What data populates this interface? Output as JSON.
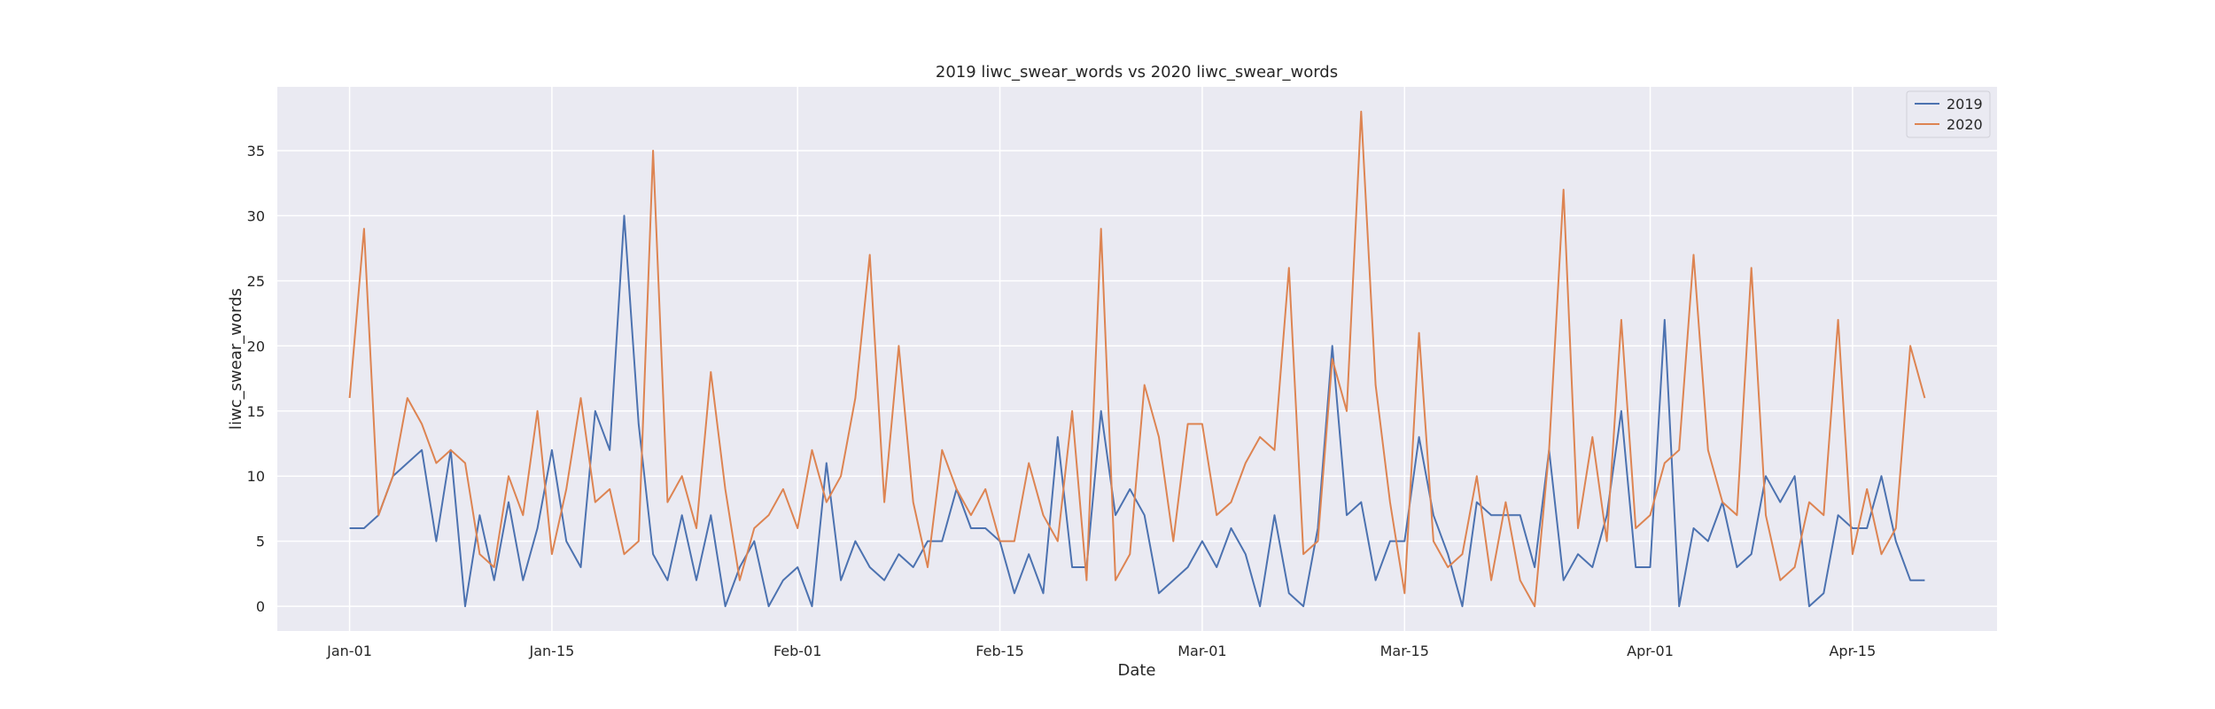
{
  "chart_data": {
    "type": "line",
    "title": "2019 liwc_swear_words vs 2020 liwc_swear_words",
    "xlabel": "Date",
    "ylabel": "liwc_swear_words",
    "x_start": "Jan-01",
    "x_ticks": [
      {
        "label": "Jan-01",
        "day": 0
      },
      {
        "label": "Jan-15",
        "day": 14
      },
      {
        "label": "Feb-01",
        "day": 31
      },
      {
        "label": "Feb-15",
        "day": 45
      },
      {
        "label": "Mar-01",
        "day": 59
      },
      {
        "label": "Mar-15",
        "day": 73
      },
      {
        "label": "Apr-01",
        "day": 90
      },
      {
        "label": "Apr-15",
        "day": 104
      }
    ],
    "xlim": [
      -5,
      114
    ],
    "ylim": [
      -1.9,
      39.9
    ],
    "y_ticks": [
      0,
      5,
      10,
      15,
      20,
      25,
      30,
      35
    ],
    "grid": true,
    "legend_position": "top-right",
    "series": [
      {
        "name": "2019",
        "color": "#4c72b0",
        "values": [
          6,
          6,
          7,
          10,
          11,
          12,
          5,
          12,
          0,
          7,
          2,
          8,
          2,
          6,
          12,
          5,
          3,
          15,
          12,
          30,
          14,
          4,
          2,
          7,
          2,
          7,
          0,
          3,
          5,
          0,
          2,
          3,
          0,
          11,
          2,
          5,
          3,
          2,
          4,
          3,
          5,
          5,
          9,
          6,
          6,
          5,
          1,
          4,
          1,
          13,
          3,
          3,
          15,
          7,
          9,
          7,
          1,
          2,
          3,
          5,
          3,
          6,
          4,
          0,
          7,
          1,
          0,
          6,
          20,
          7,
          8,
          2,
          5,
          5,
          13,
          7,
          4,
          0,
          8,
          7,
          7,
          7,
          3,
          12,
          2,
          4,
          3,
          7,
          15,
          3,
          3,
          22,
          0,
          6,
          5,
          8,
          3,
          4,
          10,
          8,
          10,
          0,
          1,
          7,
          6,
          6,
          10,
          5,
          2,
          2
        ]
      },
      {
        "name": "2020",
        "color": "#dd8452",
        "values": [
          16,
          29,
          7,
          10,
          16,
          14,
          11,
          12,
          11,
          4,
          3,
          10,
          7,
          15,
          4,
          9,
          16,
          8,
          9,
          4,
          5,
          35,
          8,
          10,
          6,
          18,
          9,
          2,
          6,
          7,
          9,
          6,
          12,
          8,
          10,
          16,
          27,
          8,
          20,
          8,
          3,
          12,
          9,
          7,
          9,
          5,
          5,
          11,
          7,
          5,
          15,
          2,
          29,
          2,
          4,
          17,
          13,
          5,
          14,
          14,
          7,
          8,
          11,
          13,
          12,
          26,
          4,
          5,
          19,
          15,
          38,
          17,
          8,
          1,
          21,
          5,
          3,
          4,
          10,
          2,
          8,
          2,
          0,
          12,
          32,
          6,
          13,
          5,
          22,
          6,
          7,
          11,
          12,
          27,
          12,
          8,
          7,
          26,
          7,
          2,
          3,
          8,
          7,
          22,
          4,
          9,
          4,
          6,
          20,
          16
        ]
      }
    ]
  }
}
